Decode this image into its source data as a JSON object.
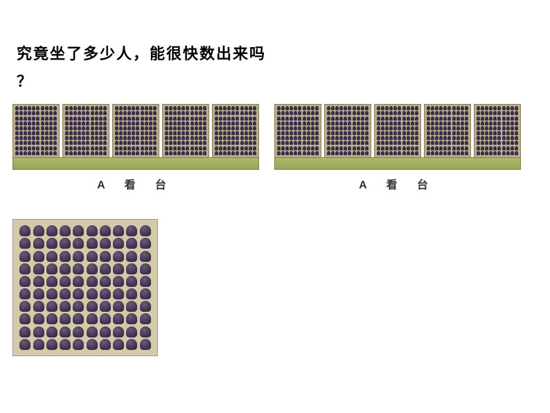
{
  "question": {
    "line1": "究竟坐了多少人，能很快数出来吗",
    "line2": "？"
  },
  "stands": [
    {
      "label": "A 看 台",
      "panel_count": 5,
      "rows_per_panel": 10,
      "seats_per_row": 10,
      "seat_color": "#3a2d4a",
      "panel_bg": "#b8ad8c",
      "platform_color": "#a8b060"
    },
    {
      "label": "A 看 台",
      "panel_count": 5,
      "rows_per_panel": 10,
      "seats_per_row": 10,
      "seat_color": "#3a2d4a",
      "panel_bg": "#b8ad8c",
      "platform_color": "#a8b060"
    }
  ],
  "zoom": {
    "rows": 10,
    "cols": 10,
    "seat_color": "#3a2d4a",
    "bg_color": "#d4c9a8"
  },
  "colors": {
    "text": "#000000",
    "background": "#ffffff"
  },
  "typography": {
    "question_fontsize": 22,
    "question_weight": "bold",
    "label_fontsize": 16
  }
}
